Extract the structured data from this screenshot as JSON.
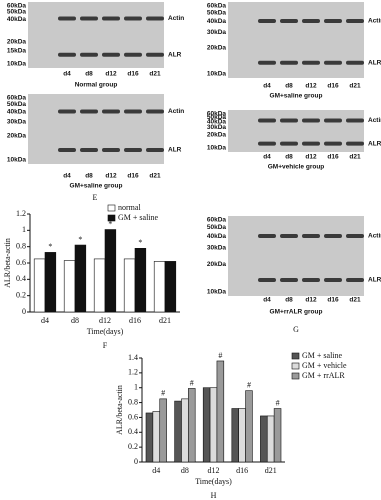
{
  "blots": [
    {
      "ladder": [
        "60kDa",
        "50kDa",
        "40kDa",
        "20kDa",
        "15kDa",
        "10kDa"
      ],
      "bands": [
        "Actin",
        "ALR"
      ],
      "lanes": [
        "d4",
        "d8",
        "d12",
        "d16",
        "d21"
      ],
      "caption": "Normal group"
    },
    {
      "ladder": [
        "60kDa",
        "50kDa",
        "40kDa",
        "30kDa",
        "20kDa",
        "10kDa"
      ],
      "bands": [
        "Actin",
        "ALR"
      ],
      "lanes": [
        "d4",
        "d8",
        "d12",
        "d16",
        "d21"
      ],
      "caption": "GM+saline group"
    },
    {
      "ladder": [
        "60kDa",
        "50kDa",
        "40kDa",
        "30kDa",
        "20kDa",
        "10kDa"
      ],
      "bands": [
        "Actin",
        "ALR"
      ],
      "lanes": [
        "d4",
        "d8",
        "d12",
        "d16",
        "d21"
      ],
      "caption": "GM+saline group"
    },
    {
      "ladder": [
        "60kDa",
        "50kDa",
        "40kDa",
        "30kDa",
        "20kDa",
        "10kDa"
      ],
      "bands": [
        "Actin",
        "ALR"
      ],
      "lanes": [
        "d4",
        "d8",
        "d12",
        "d16",
        "d21"
      ],
      "caption": "GM+vehicle group"
    },
    {
      "ladder": [
        "60kDa",
        "50kDa",
        "40kDa",
        "30kDa",
        "20kDa",
        "10kDa"
      ],
      "bands": [
        "Actin",
        "ALR"
      ],
      "lanes": [
        "d4",
        "d8",
        "d12",
        "d16",
        "d21"
      ],
      "caption": "GM+rrALR group"
    }
  ],
  "panel_labels": [
    "E",
    "G"
  ],
  "chart_data": [
    {
      "type": "bar",
      "caption": "F",
      "ylabel": "ALR/beta-actin",
      "xlabel": "Time(days)",
      "categories": [
        "d4",
        "d8",
        "d12",
        "d16",
        "d21"
      ],
      "ylim": [
        0,
        1.2
      ],
      "yticks": [
        0,
        0.2,
        0.4,
        0.6,
        0.8,
        1,
        1.2
      ],
      "series": [
        {
          "name": "normal",
          "color": "#ffffff",
          "values": [
            0.65,
            0.63,
            0.65,
            0.65,
            0.62
          ]
        },
        {
          "name": "GM + saline",
          "color": "#111111",
          "values": [
            0.73,
            0.82,
            1.01,
            0.78,
            0.62
          ],
          "markers": [
            "*",
            "*",
            "*",
            "*",
            null
          ]
        }
      ]
    },
    {
      "type": "bar",
      "caption": "H",
      "ylabel": "ALR/beta-actin",
      "xlabel": "Time(days)",
      "categories": [
        "d4",
        "d8",
        "d12",
        "d16",
        "d21"
      ],
      "ylim": [
        0,
        1.4
      ],
      "yticks": [
        0,
        0.2,
        0.4,
        0.6,
        0.8,
        1,
        1.2,
        1.4
      ],
      "series": [
        {
          "name": "GM + saline",
          "color": "#555555",
          "values": [
            0.66,
            0.82,
            1.0,
            0.72,
            0.62
          ]
        },
        {
          "name": "GM + vehicle",
          "color": "#dcdcdc",
          "values": [
            0.68,
            0.85,
            1.0,
            0.72,
            0.62
          ]
        },
        {
          "name": "GM + rrALR",
          "color": "#9a9a9a",
          "values": [
            0.85,
            0.99,
            1.36,
            0.96,
            0.72
          ],
          "markers": [
            "#",
            "#",
            "#",
            "#",
            "#"
          ]
        }
      ]
    }
  ]
}
